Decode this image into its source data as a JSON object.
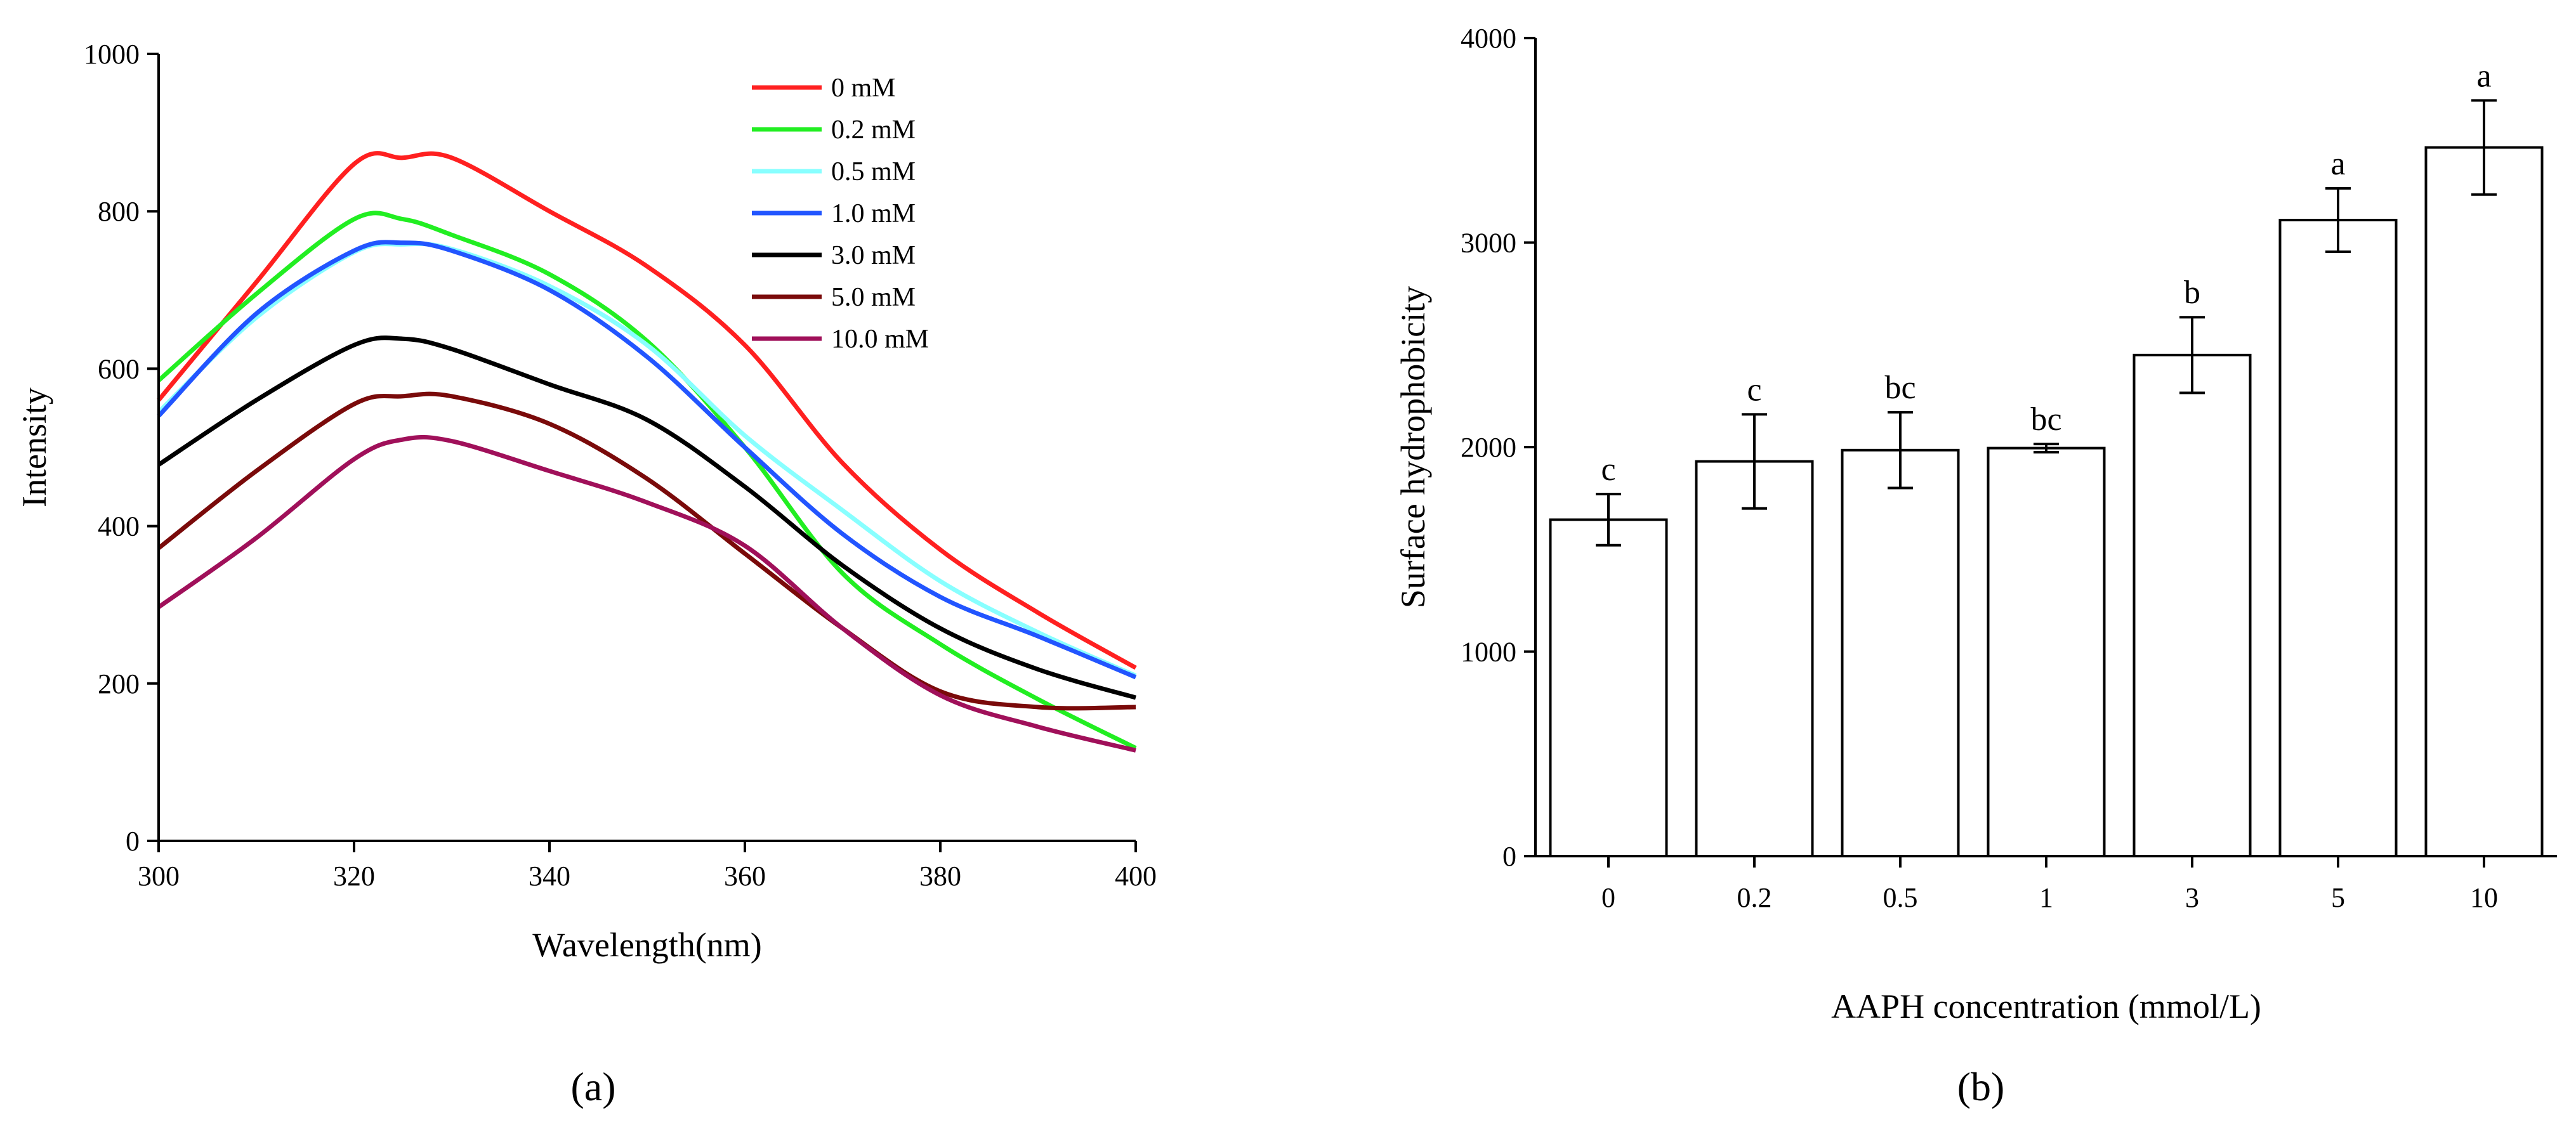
{
  "chart_data": [
    {
      "type": "line",
      "xlabel": "Wavelength(nm)",
      "ylabel": "Intensity",
      "xlim": [
        300,
        400
      ],
      "ylim": [
        0,
        1000
      ],
      "xticks": [
        "300",
        "320",
        "340",
        "360",
        "380",
        "400"
      ],
      "yticks": [
        "0",
        "200",
        "400",
        "600",
        "800",
        "1000"
      ],
      "grid": false,
      "legend_position": "top-right",
      "panel_label": "(a)",
      "x": [
        300,
        310,
        320,
        325,
        330,
        340,
        350,
        360,
        370,
        380,
        390,
        400
      ],
      "series": [
        {
          "name": "0 mM",
          "color": "#ff2020",
          "values": [
            560,
            710,
            860,
            868,
            868,
            800,
            730,
            630,
            480,
            370,
            290,
            220
          ]
        },
        {
          "name": "0.2 mM",
          "color": "#22ee22",
          "values": [
            585,
            695,
            790,
            790,
            770,
            720,
            635,
            500,
            340,
            250,
            180,
            118
          ]
        },
        {
          "name": "0.5 mM",
          "color": "#88ffff",
          "values": [
            545,
            665,
            748,
            758,
            752,
            705,
            630,
            515,
            420,
            330,
            265,
            210
          ]
        },
        {
          "name": "1.0 mM",
          "color": "#2255ff",
          "values": [
            540,
            670,
            750,
            760,
            750,
            700,
            615,
            500,
            390,
            310,
            260,
            208
          ]
        },
        {
          "name": "3.0 mM",
          "color": "#000000",
          "values": [
            478,
            560,
            630,
            638,
            625,
            580,
            535,
            450,
            350,
            270,
            218,
            182
          ]
        },
        {
          "name": "5.0 mM",
          "color": "#7a0a0a",
          "values": [
            372,
            470,
            555,
            565,
            565,
            530,
            460,
            365,
            270,
            190,
            170,
            170
          ]
        },
        {
          "name": "10.0 mM",
          "color": "#a0105a",
          "values": [
            297,
            385,
            485,
            510,
            508,
            470,
            430,
            375,
            270,
            185,
            145,
            115
          ]
        }
      ]
    },
    {
      "type": "bar",
      "xlabel": "AAPH concentration (mmol/L)",
      "ylabel": "Surface hydrophobicity",
      "ylim": [
        0,
        4000
      ],
      "yticks": [
        "0",
        "1000",
        "2000",
        "3000",
        "4000"
      ],
      "grid": false,
      "panel_label": "(b)",
      "categories": [
        "0",
        "0.2",
        "0.5",
        "1",
        "3",
        "5",
        "10"
      ],
      "values": [
        1645,
        1930,
        1985,
        1995,
        2450,
        3110,
        3465
      ],
      "errors": [
        125,
        230,
        185,
        20,
        185,
        155,
        230
      ],
      "significance": [
        "c",
        "c",
        "bc",
        "bc",
        "b",
        "a",
        "a"
      ]
    }
  ]
}
